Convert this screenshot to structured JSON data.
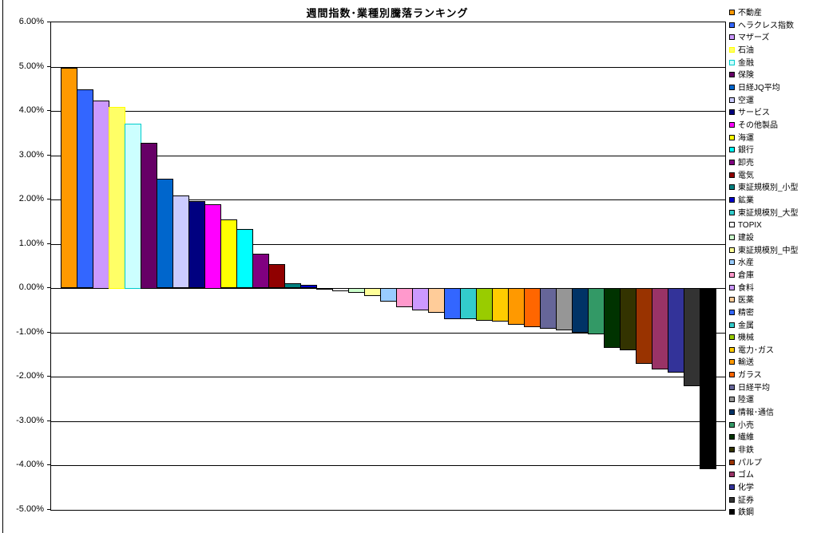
{
  "chart_data": {
    "type": "bar",
    "title": "週間指数･業種別騰落ランキング",
    "xlabel": "",
    "ylabel": "",
    "value_unit": "percent",
    "ylim": [
      -5.0,
      6.0
    ],
    "ytick_step": 1.0,
    "ytick_labels": [
      "6.00%",
      "5.00%",
      "4.00%",
      "3.00%",
      "2.00%",
      "1.00%",
      "0.00%",
      "-1.00%",
      "-2.00%",
      "-3.00%",
      "-4.00%",
      "-5.00%"
    ],
    "grid": true,
    "legend_position": "right",
    "categories": [
      "不動産",
      "ヘラクレス指数",
      "マザーズ",
      "石油",
      "金融",
      "保険",
      "日経JQ平均",
      "空運",
      "サービス",
      "その他製品",
      "海運",
      "銀行",
      "卸売",
      "電気",
      "東証規模別_小型",
      "鉱業",
      "東証規模別_大型",
      "TOPIX",
      "建設",
      "東証規模別_中型",
      "水産",
      "倉庫",
      "食料",
      "医薬",
      "精密",
      "金属",
      "機械",
      "電力･ガス",
      "輸送",
      "ガラス",
      "日経平均",
      "陸運",
      "情報･通信",
      "小売",
      "繊維",
      "非鉄",
      "パルプ",
      "ゴム",
      "化学",
      "証券",
      "鉄鋼"
    ],
    "values": [
      4.97,
      4.48,
      4.24,
      4.1,
      3.72,
      3.29,
      2.47,
      2.09,
      1.97,
      1.9,
      1.55,
      1.34,
      0.78,
      0.54,
      0.11,
      0.07,
      -0.04,
      -0.07,
      -0.11,
      -0.18,
      -0.31,
      -0.43,
      -0.51,
      -0.56,
      -0.7,
      -0.71,
      -0.73,
      -0.75,
      -0.83,
      -0.88,
      -0.92,
      -0.96,
      -1.0,
      -1.04,
      -1.35,
      -1.4,
      -1.71,
      -1.83,
      -1.9,
      -2.22,
      -4.08
    ],
    "bar_fill_colors": [
      "#FF9900",
      "#3366FF",
      "#CC99FF",
      "#FFFF66",
      "#CCFFFF",
      "#660066",
      "#0066CC",
      "#CCCCFF",
      "#000080",
      "#FF00FF",
      "#FFFF00",
      "#00FFFF",
      "#800080",
      "#900000",
      "#008080",
      "#0000CC",
      "#33CCCC",
      "#FFFFFF",
      "#CCFFCC",
      "#FFFF99",
      "#99CCFF",
      "#FF99CC",
      "#CC99FF",
      "#FFCC99",
      "#3366FF",
      "#33CCCC",
      "#99CC00",
      "#FFCC00",
      "#FF9900",
      "#FF6600",
      "#666699",
      "#969696",
      "#003366",
      "#339966",
      "#003300",
      "#333300",
      "#993300",
      "#993366",
      "#333399",
      "#333333",
      "#000000"
    ],
    "bar_border_colors": [
      "#000000",
      "#000000",
      "#000000",
      "#FFFF00",
      "#00CCCC",
      "#000000",
      "#000000",
      "#000000",
      "#000000",
      "#000000",
      "#000000",
      "#000000",
      "#000000",
      "#000000",
      "#000000",
      "#000000",
      "#000000",
      "#000000",
      "#000000",
      "#000000",
      "#000000",
      "#000000",
      "#000000",
      "#000000",
      "#000000",
      "#000000",
      "#000000",
      "#000000",
      "#000000",
      "#000000",
      "#000000",
      "#000000",
      "#000000",
      "#000000",
      "#000000",
      "#000000",
      "#000000",
      "#000000",
      "#000000",
      "#000000",
      "#000000"
    ]
  },
  "colors": {
    "background": "#FFFFFF",
    "axis": "#000000",
    "grid": "#000000"
  }
}
